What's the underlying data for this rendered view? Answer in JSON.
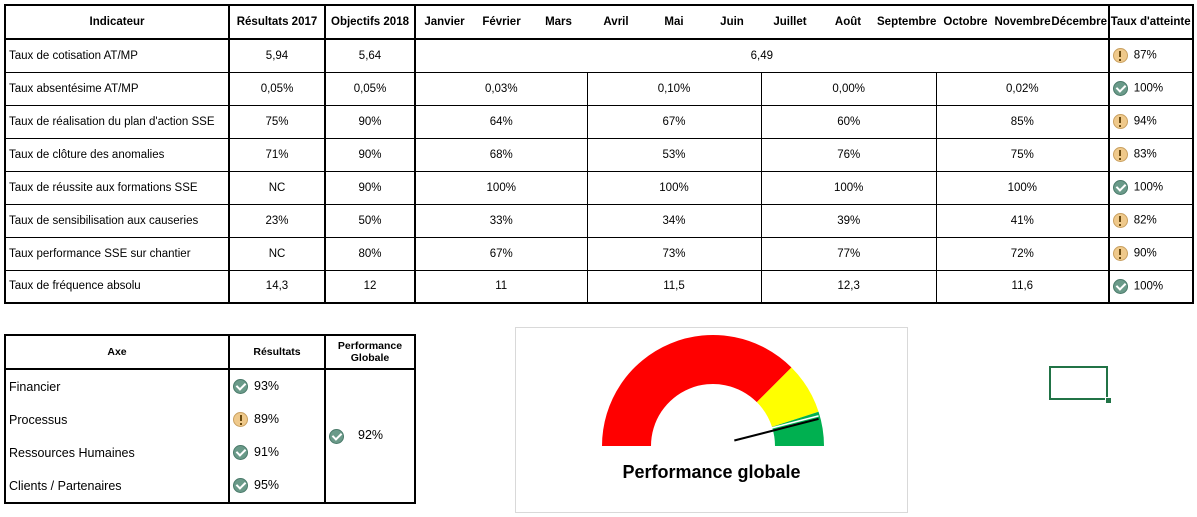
{
  "kpi": {
    "headers": {
      "indicator": "Indicateur",
      "results2017": "Résultats 2017",
      "objectives2018": "Objectifs 2018",
      "months": [
        "Janvier",
        "Février",
        "Mars",
        "Avril",
        "Mai",
        "Juin",
        "Juillet",
        "Août",
        "Septembre",
        "Octobre",
        "Novembre",
        "Décembre"
      ],
      "attainment": "Taux d'atteinte"
    },
    "rows": [
      {
        "name": "Taux de cotisation AT/MP",
        "r2017": "5,94",
        "obj2018": "5,64",
        "period": [
          "6,49"
        ],
        "status": "warn",
        "attainment": "87%"
      },
      {
        "name": "Taux absentésime AT/MP",
        "r2017": "0,05%",
        "obj2018": "0,05%",
        "period": [
          "0,03%",
          "0,10%",
          "0,00%",
          "0,02%"
        ],
        "status": "ok",
        "attainment": "100%"
      },
      {
        "name": "Taux de réalisation du plan d'action SSE",
        "r2017": "75%",
        "obj2018": "90%",
        "period": [
          "64%",
          "67%",
          "60%",
          "85%"
        ],
        "status": "warn",
        "attainment": "94%"
      },
      {
        "name": "Taux de clôture des anomalies",
        "r2017": "71%",
        "obj2018": "90%",
        "period": [
          "68%",
          "53%",
          "76%",
          "75%"
        ],
        "status": "warn",
        "attainment": "83%"
      },
      {
        "name": "Taux de réussite aux formations SSE",
        "r2017": "NC",
        "obj2018": "90%",
        "period": [
          "100%",
          "100%",
          "100%",
          "100%"
        ],
        "status": "ok",
        "attainment": "100%"
      },
      {
        "name": "Taux de sensibilisation aux causeries",
        "r2017": "23%",
        "obj2018": "50%",
        "period": [
          "33%",
          "34%",
          "39%",
          "41%"
        ],
        "status": "warn",
        "attainment": "82%"
      },
      {
        "name": "Taux performance SSE sur chantier",
        "r2017": "NC",
        "obj2018": "80%",
        "period": [
          "67%",
          "73%",
          "77%",
          "72%"
        ],
        "status": "warn",
        "attainment": "90%"
      },
      {
        "name": "Taux de fréquence absolu",
        "r2017": "14,3",
        "obj2018": "12",
        "period": [
          "11",
          "11,5",
          "12,3",
          "11,6"
        ],
        "status": "ok",
        "attainment": "100%"
      }
    ]
  },
  "axes": {
    "headers": {
      "axe": "Axe",
      "results": "Résultats",
      "global": "Performance Globale"
    },
    "rows": [
      {
        "name": "Financier",
        "status": "ok",
        "value": "93%"
      },
      {
        "name": "Processus",
        "status": "warn",
        "value": "89%"
      },
      {
        "name": "Ressources Humaines",
        "status": "ok",
        "value": "91%"
      },
      {
        "name": "Clients / Partenaires",
        "status": "ok",
        "value": "95%"
      }
    ],
    "global": {
      "status": "ok",
      "value": "92%"
    }
  },
  "gauge": {
    "title": "Performance globale",
    "value_fraction": 0.92,
    "bands": [
      {
        "color": "#ff0000",
        "share": 0.75
      },
      {
        "color": "#ffff00",
        "share": 0.15
      },
      {
        "color": "#00b050",
        "share": 0.1
      }
    ]
  }
}
